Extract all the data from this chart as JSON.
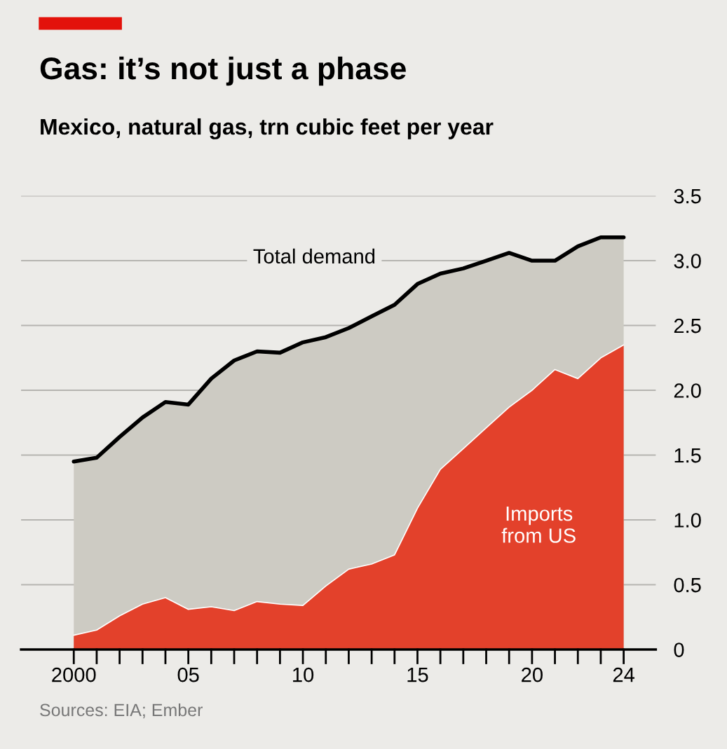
{
  "chart_data": {
    "type": "area",
    "title": "Gas: it’s not just a phase",
    "subtitle": "Mexico, natural gas, trn cubic feet per year",
    "x": [
      2000,
      2001,
      2002,
      2003,
      2004,
      2005,
      2006,
      2007,
      2008,
      2009,
      2010,
      2011,
      2012,
      2013,
      2014,
      2015,
      2016,
      2017,
      2018,
      2019,
      2020,
      2021,
      2022,
      2023,
      2024
    ],
    "series": [
      {
        "name": "Total demand",
        "color": "#cdcbc3",
        "values": [
          1.45,
          1.48,
          1.64,
          1.79,
          1.91,
          1.89,
          2.09,
          2.23,
          2.3,
          2.29,
          2.37,
          2.41,
          2.48,
          2.57,
          2.66,
          2.82,
          2.9,
          2.94,
          3.0,
          3.06,
          3.0,
          3.0,
          3.11,
          3.18,
          3.18
        ]
      },
      {
        "name": "Imports from US",
        "color": "#e3412b",
        "values": [
          0.11,
          0.15,
          0.26,
          0.35,
          0.4,
          0.31,
          0.33,
          0.3,
          0.37,
          0.35,
          0.34,
          0.49,
          0.62,
          0.66,
          0.73,
          1.09,
          1.39,
          1.55,
          1.71,
          1.87,
          2.0,
          2.16,
          2.09,
          2.25,
          2.35
        ]
      }
    ],
    "xlim": [
      1997.7,
      2025.4
    ],
    "xticks": [
      2000,
      {
        "value": 2005,
        "label": "05"
      },
      {
        "value": 2010,
        "label": "10"
      },
      {
        "value": 2015,
        "label": "15"
      },
      {
        "value": 2020,
        "label": "20"
      },
      {
        "value": 2024,
        "label": "24"
      }
    ],
    "ylim": [
      0,
      3.5
    ],
    "yticks": [
      0,
      0.5,
      {
        "value": 1,
        "label": "1.0"
      },
      1.5,
      {
        "value": 2,
        "label": "2.0"
      },
      2.5,
      {
        "value": 3,
        "label": "3.0"
      },
      3.5
    ],
    "grid": "y",
    "annotations": [
      "Sources: EIA; Ember"
    ]
  }
}
